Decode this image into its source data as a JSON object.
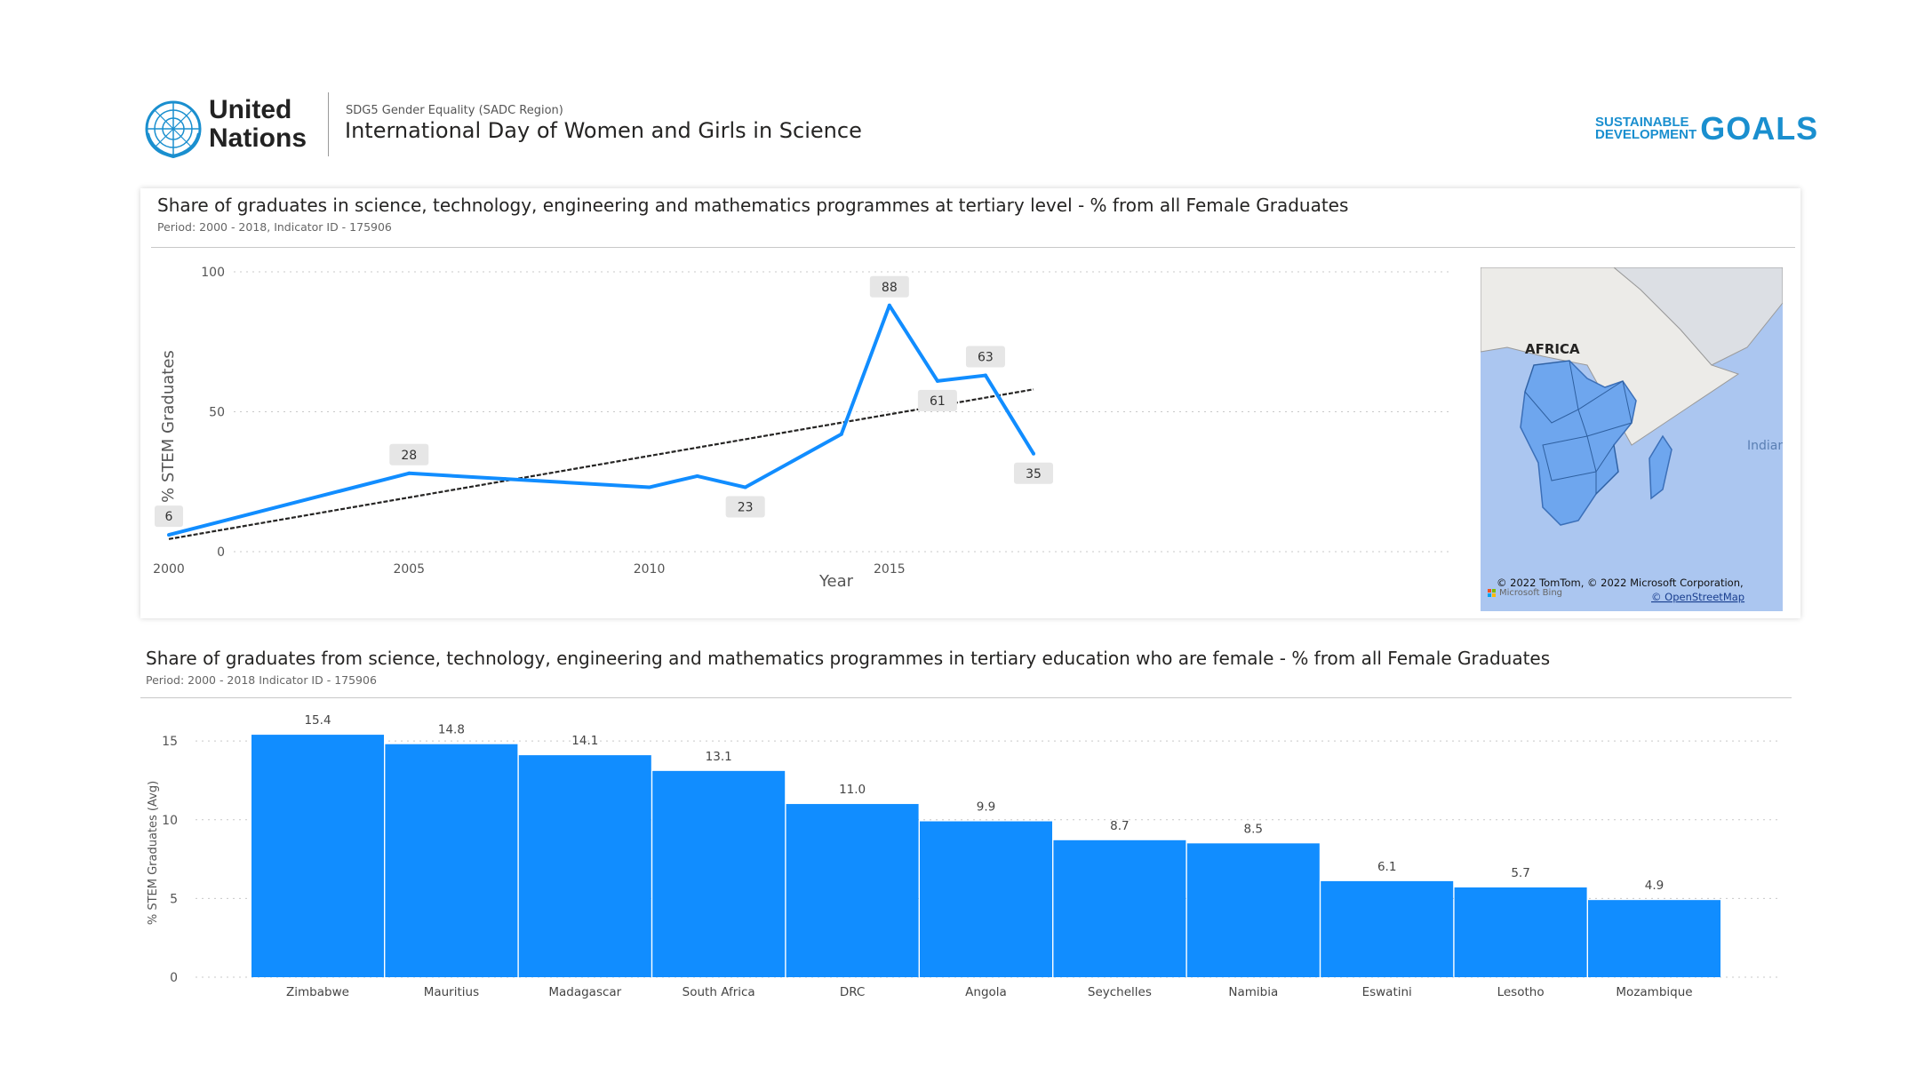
{
  "header": {
    "org_line1": "United",
    "org_line2": "Nations",
    "subtitle": "SDG5 Gender Equality (SADC Region)",
    "title": "International Day of Women and Girls in Science",
    "sdg_line1": "SUSTAINABLE",
    "sdg_line2": "DEVELOPMENT",
    "sdg_goals": "GOALS"
  },
  "colors": {
    "accent": "#118dff",
    "trend": "#252423",
    "label_bg": "#e6e6e6",
    "map_land": "#6ea6ee",
    "map_water": "#abc6f0"
  },
  "line_panel": {
    "title": "Share of graduates in science, technology, engineering and mathematics programmes at tertiary level - % from all Female Graduates",
    "subtitle": "Period: 2000 - 2018, Indicator ID - 175906"
  },
  "map": {
    "label": "AFRICA",
    "ocean_label": "Indian Ocean",
    "attribution": "© 2022 TomTom, © 2022 Microsoft Corporation,",
    "bing": "Microsoft Bing",
    "osm_link": "© OpenStreetMap"
  },
  "bar_panel": {
    "title": "Share of graduates from science, technology, engineering and mathematics programmes in tertiary education who are female -  % from all Female Graduates",
    "subtitle": "Period: 2000 - 2018 Indicator ID - 175906"
  },
  "chart_data": [
    {
      "type": "line",
      "xlabel": "Year",
      "ylabel": "% STEM Graduates",
      "xlim": [
        2000,
        2018
      ],
      "ylim": [
        0,
        100
      ],
      "x_ticks": [
        2000,
        2005,
        2010,
        2015
      ],
      "y_ticks": [
        0,
        50,
        100
      ],
      "grid": true,
      "legend": "none",
      "series": [
        {
          "x": [
            2000,
            2005,
            2007,
            2010,
            2011,
            2012,
            2014,
            2015,
            2016,
            2017,
            2018
          ],
          "values": [
            6,
            28,
            26,
            23,
            27,
            23,
            42,
            88,
            61,
            63,
            35
          ]
        }
      ],
      "data_labels": [
        {
          "x": 2000,
          "y": 6,
          "text": "6"
        },
        {
          "x": 2005,
          "y": 28,
          "text": "28"
        },
        {
          "x": 2012,
          "y": 23,
          "text": "23"
        },
        {
          "x": 2015,
          "y": 88,
          "text": "88"
        },
        {
          "x": 2016,
          "y": 61,
          "text": "61"
        },
        {
          "x": 2017,
          "y": 63,
          "text": "63"
        },
        {
          "x": 2018,
          "y": 35,
          "text": "35"
        }
      ],
      "trend_line": {
        "x": [
          2000,
          2018
        ],
        "y": [
          4.5,
          58
        ]
      }
    },
    {
      "type": "bar",
      "ylabel": "% STEM Graduates (Avg)",
      "ylim": [
        0,
        15.8
      ],
      "y_ticks": [
        0,
        5,
        10,
        15
      ],
      "grid": true,
      "legend": "none",
      "categories": [
        "Zimbabwe",
        "Mauritius",
        "Madagascar",
        "South Africa",
        "DRC",
        "Angola",
        "Seychelles",
        "Namibia",
        "Eswatini",
        "Lesotho",
        "Mozambique"
      ],
      "values": [
        15.4,
        14.8,
        14.1,
        13.1,
        11.0,
        9.9,
        8.7,
        8.5,
        6.1,
        5.7,
        4.9
      ],
      "labels": [
        "15.4",
        "14.8",
        "14.1",
        "13.1",
        "11.0",
        "9.9",
        "8.7",
        "8.5",
        "6.1",
        "5.7",
        "4.9"
      ]
    }
  ]
}
